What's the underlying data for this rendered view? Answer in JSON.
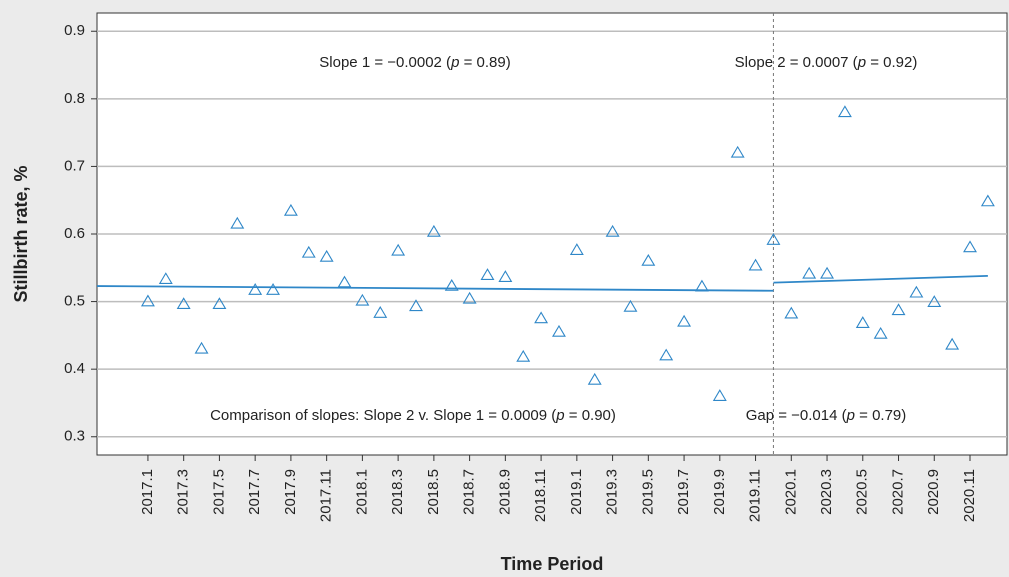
{
  "chart_data": {
    "type": "scatter",
    "y_label": "Stillbirth rate, %",
    "x_label": "Time Period",
    "categories": [
      "2017.1",
      null,
      "2017.3",
      null,
      "2017.5",
      null,
      "2017.7",
      null,
      "2017.9",
      null,
      "2017.11",
      null,
      "2018.1",
      null,
      "2018.3",
      null,
      "2018.5",
      null,
      "2018.7",
      null,
      "2018.9",
      null,
      "2018.11",
      null,
      "2019.1",
      null,
      "2019.3",
      null,
      "2019.5",
      null,
      "2019.7",
      null,
      "2019.9",
      null,
      "2019.11",
      null,
      "2020.1",
      null,
      "2020.3",
      null,
      "2020.5",
      null,
      "2020.7",
      null,
      "2020.9",
      null,
      "2020.11",
      null
    ],
    "series": [
      {
        "color": "#2f87c8",
        "marker": "triangle",
        "values": [
          0.5,
          0.533,
          0.496,
          0.43,
          0.496,
          0.615,
          0.517,
          0.517,
          0.634,
          0.572,
          0.566,
          0.528,
          0.501,
          0.483,
          0.575,
          0.493,
          0.603,
          0.523,
          0.504,
          0.539,
          0.536,
          0.418,
          0.475,
          0.455,
          0.576,
          0.384,
          0.603,
          0.492,
          0.56,
          0.42,
          0.47,
          0.522,
          0.36,
          0.72,
          0.553,
          0.591,
          0.482,
          0.541,
          0.541,
          0.78,
          0.468,
          0.452,
          0.487,
          0.513,
          0.499,
          0.436,
          0.58,
          0.648
        ]
      }
    ],
    "trend_lines": [
      {
        "color": "#2f87c8",
        "x": [
          -1.85,
          36
        ],
        "values": [
          0.523,
          0.516
        ]
      },
      {
        "color": "#2f87c8",
        "x": [
          36,
          48
        ],
        "values": [
          0.528,
          0.538
        ]
      }
    ],
    "xlim": [
      -1.85,
      49.07
    ],
    "vline": 36,
    "ylim": [
      0.273,
      0.927
    ],
    "yticks": [
      0.3,
      0.4,
      0.5,
      0.6,
      0.7,
      0.8,
      0.9
    ],
    "grid": true,
    "annotations": [
      {
        "parts": [
          "Slope 1 = −0.0002 (",
          "p",
          " = 0.89)"
        ]
      },
      {
        "parts": [
          "Slope 2 = 0.0007 (",
          "p",
          " = 0.92)"
        ]
      },
      {
        "parts": [
          "Comparison of slopes: Slope 2 v. Slope 1 = 0.0009 (",
          "p",
          " = 0.90)"
        ]
      },
      {
        "parts": [
          "Gap = −0.014 (",
          "p",
          " = 0.79)"
        ]
      }
    ]
  }
}
